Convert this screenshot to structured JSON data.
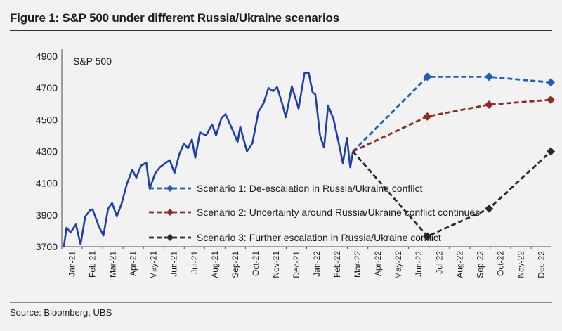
{
  "figure": {
    "title": "Figure 1: S&P 500 under different Russia/Ukraine scenarios",
    "source": "Source: Bloomberg, UBS"
  },
  "chart_data": {
    "type": "line",
    "title": "Figure 1: S&P 500 under different Russia/Ukraine scenarios",
    "series_label": "S&P 500",
    "ylim": [
      3700,
      4900
    ],
    "yticks": [
      3700,
      3900,
      4100,
      4300,
      4500,
      4700,
      4900
    ],
    "xticks": [
      "Jan-21",
      "Feb-21",
      "Mar-21",
      "Apr-21",
      "May-21",
      "Jun-21",
      "Jul-21",
      "Aug-21",
      "Sep-21",
      "Oct-21",
      "Nov-21",
      "Dec-21",
      "Jan-22",
      "Feb-22",
      "Mar-22",
      "Apr-22",
      "May-22",
      "Jun-22",
      "Jul-22",
      "Aug-22",
      "Sep-22",
      "Oct-22",
      "Nov-22",
      "Dec-22"
    ],
    "grid": false,
    "legend_position": "center-right",
    "history": {
      "name": "S&P 500",
      "color": "#1f3fa6",
      "points": [
        [
          "2021-01-04",
          3700
        ],
        [
          "2021-01-08",
          3820
        ],
        [
          "2021-01-14",
          3790
        ],
        [
          "2021-01-22",
          3840
        ],
        [
          "2021-01-29",
          3715
        ],
        [
          "2021-02-05",
          3890
        ],
        [
          "2021-02-12",
          3930
        ],
        [
          "2021-02-16",
          3935
        ],
        [
          "2021-02-25",
          3830
        ],
        [
          "2021-03-04",
          3770
        ],
        [
          "2021-03-11",
          3940
        ],
        [
          "2021-03-17",
          3975
        ],
        [
          "2021-03-24",
          3890
        ],
        [
          "2021-03-31",
          3970
        ],
        [
          "2021-04-08",
          4095
        ],
        [
          "2021-04-16",
          4185
        ],
        [
          "2021-04-22",
          4135
        ],
        [
          "2021-04-29",
          4210
        ],
        [
          "2021-05-07",
          4230
        ],
        [
          "2021-05-12",
          4065
        ],
        [
          "2021-05-20",
          4160
        ],
        [
          "2021-05-27",
          4200
        ],
        [
          "2021-06-04",
          4225
        ],
        [
          "2021-06-11",
          4245
        ],
        [
          "2021-06-18",
          4165
        ],
        [
          "2021-06-25",
          4280
        ],
        [
          "2021-07-02",
          4350
        ],
        [
          "2021-07-08",
          4320
        ],
        [
          "2021-07-14",
          4375
        ],
        [
          "2021-07-19",
          4260
        ],
        [
          "2021-07-26",
          4420
        ],
        [
          "2021-08-04",
          4400
        ],
        [
          "2021-08-13",
          4470
        ],
        [
          "2021-08-19",
          4400
        ],
        [
          "2021-08-27",
          4510
        ],
        [
          "2021-09-02",
          4535
        ],
        [
          "2021-09-10",
          4460
        ],
        [
          "2021-09-20",
          4360
        ],
        [
          "2021-09-24",
          4455
        ],
        [
          "2021-10-04",
          4300
        ],
        [
          "2021-10-12",
          4350
        ],
        [
          "2021-10-21",
          4550
        ],
        [
          "2021-10-29",
          4605
        ],
        [
          "2021-11-05",
          4700
        ],
        [
          "2021-11-12",
          4680
        ],
        [
          "2021-11-18",
          4705
        ],
        [
          "2021-11-26",
          4595
        ],
        [
          "2021-12-01",
          4515
        ],
        [
          "2021-12-10",
          4710
        ],
        [
          "2021-12-20",
          4570
        ],
        [
          "2021-12-29",
          4795
        ],
        [
          "2022-01-04",
          4795
        ],
        [
          "2022-01-10",
          4670
        ],
        [
          "2022-01-14",
          4660
        ],
        [
          "2022-01-21",
          4400
        ],
        [
          "2022-01-27",
          4325
        ],
        [
          "2022-02-02",
          4590
        ],
        [
          "2022-02-10",
          4505
        ],
        [
          "2022-02-18",
          4350
        ],
        [
          "2022-02-24",
          4225
        ],
        [
          "2022-03-02",
          4385
        ],
        [
          "2022-03-07",
          4200
        ],
        [
          "2022-03-11",
          4300
        ]
      ]
    },
    "scenarios": [
      {
        "name": "Scenario 1: De-escalation in Russia/Ukraine conflict",
        "color": "#1f5fb8",
        "points": [
          [
            "2022-03-11",
            4300
          ],
          [
            "2022-06-30",
            4770
          ],
          [
            "2022-09-30",
            4770
          ],
          [
            "2022-12-31",
            4735
          ]
        ]
      },
      {
        "name": "Scenario 2: Uncertainty around Russia/Ukraine conflict continues",
        "color": "#8b2c25",
        "points": [
          [
            "2022-03-11",
            4300
          ],
          [
            "2022-06-30",
            4520
          ],
          [
            "2022-09-30",
            4595
          ],
          [
            "2022-12-31",
            4625
          ]
        ]
      },
      {
        "name": "Scenario 3: Further escalation in Russia/Ukraine conflict",
        "color": "#2a2a2a",
        "points": [
          [
            "2022-03-11",
            4300
          ],
          [
            "2022-06-30",
            3765
          ],
          [
            "2022-09-30",
            3940
          ],
          [
            "2022-12-31",
            4300
          ]
        ]
      }
    ]
  }
}
